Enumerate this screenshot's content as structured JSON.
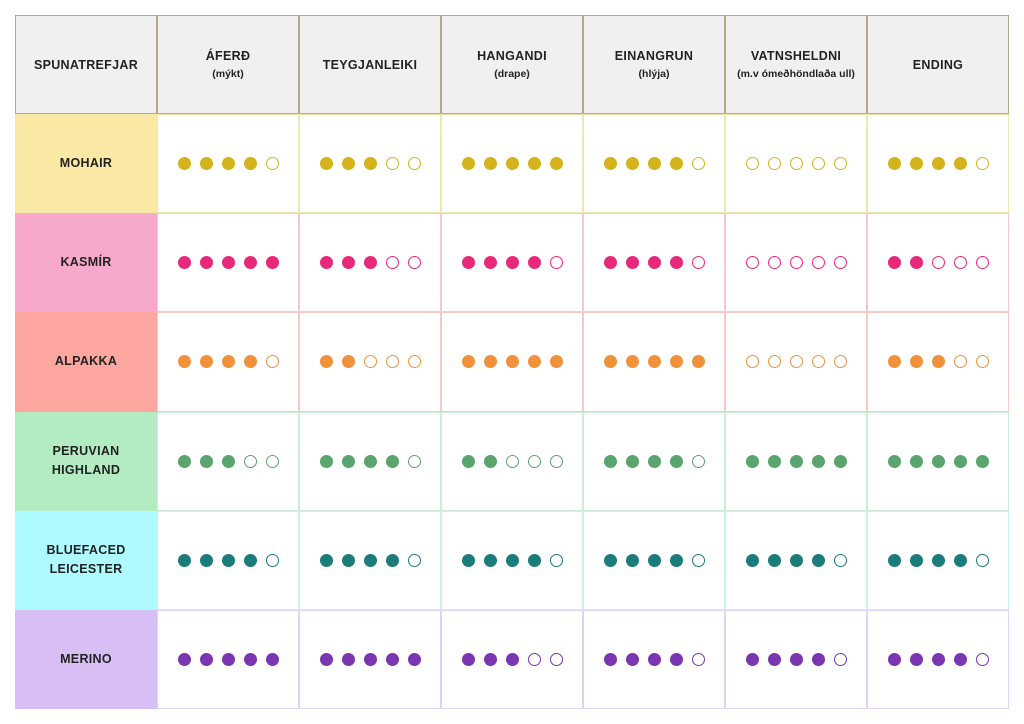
{
  "header": {
    "corner": "SPUNATREFJAR",
    "columns": [
      {
        "title": "ÁFERÐ",
        "sub": "(mýkt)"
      },
      {
        "title": "TEYGJANLEIKI",
        "sub": ""
      },
      {
        "title": "HANGANDI",
        "sub": "(drape)"
      },
      {
        "title": "EINANGRUN",
        "sub": "(hlýja)"
      },
      {
        "title": "VATNSHELDNI",
        "sub": "(m.v óm​eðhöndlaða ull)"
      },
      {
        "title": "ENDING",
        "sub": ""
      }
    ]
  },
  "fibers": [
    {
      "name": "MOHAIR",
      "color": "#d5b31a",
      "bg": "#fae8a5",
      "border": "#efe6b0",
      "ratings": [
        4,
        3,
        5,
        4,
        0,
        4
      ]
    },
    {
      "name": "KASMÍR",
      "color": "#e8297a",
      "bg": "#f7a9cb",
      "border": "#f3c6da",
      "ratings": [
        5,
        3,
        4,
        4,
        0,
        2
      ]
    },
    {
      "name": "ALPAKKA",
      "color": "#f1923a",
      "bg": "#fda7a0",
      "border": "#f5c9c4",
      "ratings": [
        4,
        2,
        5,
        5,
        0,
        3
      ]
    },
    {
      "name": "PERUVIAN\nHIGHLAND",
      "color": "#5aa46e",
      "bg": "#b3ebc2",
      "border": "#cdeed6",
      "ratings": [
        3,
        4,
        2,
        4,
        5,
        5
      ]
    },
    {
      "name": "BLUEFACED\nLEICESTER",
      "color": "#1c7c7b",
      "bg": "#adfbff",
      "border": "#c7f1f4",
      "ratings": [
        4,
        4,
        4,
        4,
        4,
        4
      ]
    },
    {
      "name": "MERINO",
      "color": "#7a36b1",
      "bg": "#d7bff5",
      "border": "#e0d2f2",
      "ratings": [
        5,
        5,
        3,
        4,
        4,
        4
      ]
    }
  ],
  "max_rating": 5
}
